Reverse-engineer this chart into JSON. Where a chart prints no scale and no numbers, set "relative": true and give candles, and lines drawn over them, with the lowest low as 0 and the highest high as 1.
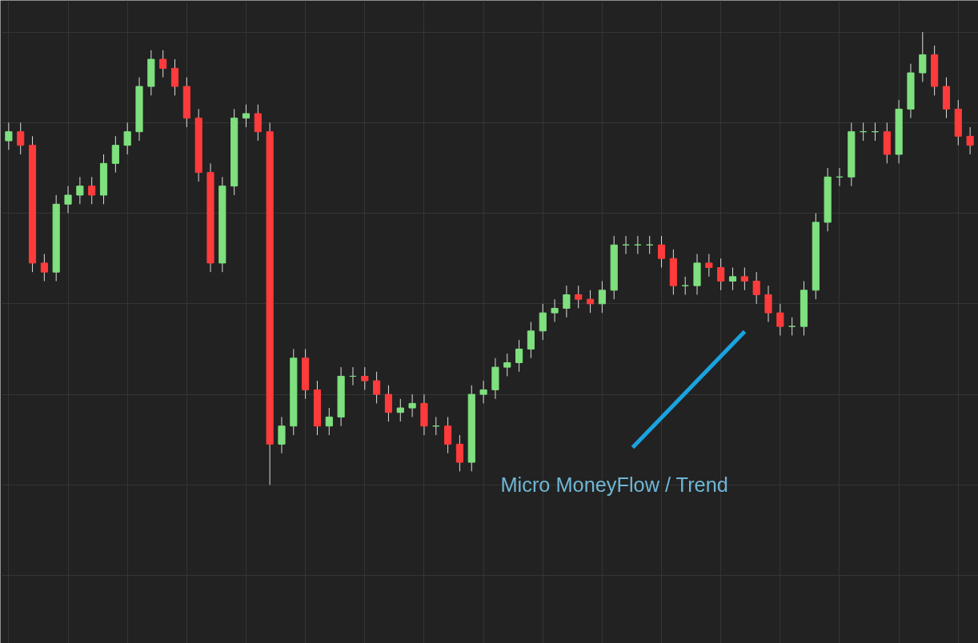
{
  "chart_data": {
    "type": "candlestick",
    "relative": true,
    "grid": true,
    "categories": [
      null,
      null,
      null,
      null,
      null,
      null,
      null,
      null,
      null,
      null,
      null,
      null,
      null,
      null,
      null,
      null,
      null,
      null,
      null,
      null,
      null,
      null,
      null,
      null,
      null,
      null,
      null,
      null,
      null,
      null,
      null,
      null,
      null,
      null,
      null,
      null,
      null,
      null,
      null,
      null,
      null,
      null,
      null,
      null,
      null,
      null,
      null,
      null,
      null,
      null,
      null,
      null,
      null,
      null,
      null,
      null,
      null,
      null,
      null,
      null,
      null,
      null,
      null,
      null,
      null,
      null,
      null,
      null,
      null,
      null,
      null,
      null,
      null,
      null,
      null,
      null,
      null,
      null,
      null,
      null,
      null,
      null
    ],
    "ohlc": [
      [
        0.76,
        0.8,
        0.74,
        0.78
      ],
      [
        0.78,
        0.8,
        0.73,
        0.75
      ],
      [
        0.75,
        0.77,
        0.47,
        0.49
      ],
      [
        0.49,
        0.51,
        0.45,
        0.47
      ],
      [
        0.47,
        0.64,
        0.45,
        0.62
      ],
      [
        0.62,
        0.66,
        0.6,
        0.64
      ],
      [
        0.64,
        0.68,
        0.62,
        0.66
      ],
      [
        0.66,
        0.68,
        0.62,
        0.64
      ],
      [
        0.64,
        0.73,
        0.62,
        0.71
      ],
      [
        0.71,
        0.77,
        0.69,
        0.75
      ],
      [
        0.75,
        0.8,
        0.73,
        0.78
      ],
      [
        0.78,
        0.9,
        0.76,
        0.88
      ],
      [
        0.88,
        0.96,
        0.86,
        0.94
      ],
      [
        0.94,
        0.96,
        0.9,
        0.92
      ],
      [
        0.92,
        0.94,
        0.86,
        0.88
      ],
      [
        0.88,
        0.9,
        0.79,
        0.81
      ],
      [
        0.81,
        0.83,
        0.67,
        0.69
      ],
      [
        0.69,
        0.71,
        0.47,
        0.49
      ],
      [
        0.49,
        0.68,
        0.47,
        0.66
      ],
      [
        0.66,
        0.83,
        0.64,
        0.81
      ],
      [
        0.81,
        0.84,
        0.79,
        0.82
      ],
      [
        0.82,
        0.84,
        0.76,
        0.78
      ],
      [
        0.78,
        0.8,
        0.0,
        0.09
      ],
      [
        0.09,
        0.15,
        0.07,
        0.13
      ],
      [
        0.13,
        0.3,
        0.11,
        0.28
      ],
      [
        0.28,
        0.3,
        0.19,
        0.21
      ],
      [
        0.21,
        0.23,
        0.11,
        0.13
      ],
      [
        0.13,
        0.17,
        0.11,
        0.15
      ],
      [
        0.15,
        0.26,
        0.13,
        0.24
      ],
      [
        0.24,
        0.26,
        0.22,
        0.24
      ],
      [
        0.24,
        0.26,
        0.21,
        0.23
      ],
      [
        0.23,
        0.25,
        0.18,
        0.2
      ],
      [
        0.2,
        0.22,
        0.14,
        0.16
      ],
      [
        0.16,
        0.19,
        0.14,
        0.17
      ],
      [
        0.17,
        0.2,
        0.15,
        0.18
      ],
      [
        0.18,
        0.2,
        0.11,
        0.13
      ],
      [
        0.13,
        0.15,
        0.11,
        0.13
      ],
      [
        0.13,
        0.15,
        0.07,
        0.09
      ],
      [
        0.09,
        0.11,
        0.03,
        0.05
      ],
      [
        0.05,
        0.22,
        0.03,
        0.2
      ],
      [
        0.2,
        0.23,
        0.18,
        0.21
      ],
      [
        0.21,
        0.28,
        0.19,
        0.26
      ],
      [
        0.26,
        0.29,
        0.24,
        0.27
      ],
      [
        0.27,
        0.32,
        0.25,
        0.3
      ],
      [
        0.3,
        0.36,
        0.28,
        0.34
      ],
      [
        0.34,
        0.4,
        0.32,
        0.38
      ],
      [
        0.38,
        0.41,
        0.36,
        0.39
      ],
      [
        0.39,
        0.44,
        0.37,
        0.42
      ],
      [
        0.42,
        0.44,
        0.39,
        0.41
      ],
      [
        0.41,
        0.43,
        0.38,
        0.4
      ],
      [
        0.4,
        0.45,
        0.38,
        0.43
      ],
      [
        0.43,
        0.55,
        0.41,
        0.53
      ],
      [
        0.53,
        0.55,
        0.51,
        0.53
      ],
      [
        0.53,
        0.55,
        0.51,
        0.53
      ],
      [
        0.53,
        0.55,
        0.51,
        0.53
      ],
      [
        0.53,
        0.55,
        0.48,
        0.5
      ],
      [
        0.5,
        0.52,
        0.42,
        0.44
      ],
      [
        0.44,
        0.46,
        0.42,
        0.44
      ],
      [
        0.44,
        0.51,
        0.42,
        0.49
      ],
      [
        0.49,
        0.51,
        0.46,
        0.48
      ],
      [
        0.48,
        0.5,
        0.43,
        0.45
      ],
      [
        0.45,
        0.48,
        0.43,
        0.46
      ],
      [
        0.46,
        0.48,
        0.43,
        0.45
      ],
      [
        0.45,
        0.47,
        0.4,
        0.42
      ],
      [
        0.42,
        0.44,
        0.36,
        0.38
      ],
      [
        0.38,
        0.4,
        0.33,
        0.35
      ],
      [
        0.35,
        0.37,
        0.33,
        0.35
      ],
      [
        0.35,
        0.45,
        0.33,
        0.43
      ],
      [
        0.43,
        0.6,
        0.41,
        0.58
      ],
      [
        0.58,
        0.7,
        0.56,
        0.68
      ],
      [
        0.68,
        0.7,
        0.66,
        0.68
      ],
      [
        0.68,
        0.8,
        0.66,
        0.78
      ],
      [
        0.78,
        0.8,
        0.76,
        0.78
      ],
      [
        0.78,
        0.8,
        0.76,
        0.78
      ],
      [
        0.78,
        0.8,
        0.71,
        0.73
      ],
      [
        0.73,
        0.85,
        0.71,
        0.83
      ],
      [
        0.83,
        0.93,
        0.81,
        0.91
      ],
      [
        0.91,
        1.0,
        0.89,
        0.95
      ],
      [
        0.95,
        0.97,
        0.86,
        0.88
      ],
      [
        0.88,
        0.9,
        0.81,
        0.83
      ],
      [
        0.83,
        0.85,
        0.75,
        0.77
      ],
      [
        0.77,
        0.79,
        0.73,
        0.75
      ]
    ],
    "colors": [
      "#7ee07e",
      "#ff3b3b",
      "#ff3b3b",
      "#ff3b3b",
      "#7ee07e",
      "#7ee07e",
      "#7ee07e",
      "#ff3b3b",
      "#7ee07e",
      "#7ee07e",
      "#7ee07e",
      "#7ee07e",
      "#7ee07e",
      "#ff3b3b",
      "#ff3b3b",
      "#ff3b3b",
      "#ff3b3b",
      "#ff3b3b",
      "#7ee07e",
      "#7ee07e",
      "#7ee07e",
      "#ff3b3b",
      "#ff3b3b",
      "#7ee07e",
      "#7ee07e",
      "#ff3b3b",
      "#ff3b3b",
      "#7ee07e",
      "#7ee07e",
      "#7ee07e",
      "#ff3b3b",
      "#ff3b3b",
      "#ff3b3b",
      "#7ee07e",
      "#7ee07e",
      "#ff3b3b",
      "#7ee07e",
      "#ff3b3b",
      "#ff3b3b",
      "#7ee07e",
      "#7ee07e",
      "#7ee07e",
      "#7ee07e",
      "#7ee07e",
      "#7ee07e",
      "#7ee07e",
      "#7ee07e",
      "#7ee07e",
      "#ff3b3b",
      "#ff3b3b",
      "#7ee07e",
      "#7ee07e",
      "#7ee07e",
      "#7ee07e",
      "#7ee07e",
      "#ff3b3b",
      "#ff3b3b",
      "#7ee07e",
      "#7ee07e",
      "#ff3b3b",
      "#ff3b3b",
      "#7ee07e",
      "#ff3b3b",
      "#ff3b3b",
      "#ff3b3b",
      "#ff3b3b",
      "#7ee07e",
      "#7ee07e",
      "#7ee07e",
      "#7ee07e",
      "#7ee07e",
      "#7ee07e",
      "#7ee07e",
      "#7ee07e",
      "#ff3b3b",
      "#7ee07e",
      "#7ee07e",
      "#7ee07e",
      "#ff3b3b",
      "#ff3b3b",
      "#ff3b3b",
      "#ff3b3b"
    ],
    "annotations": [
      "Micro MoneyFlow / Trend"
    ]
  }
}
